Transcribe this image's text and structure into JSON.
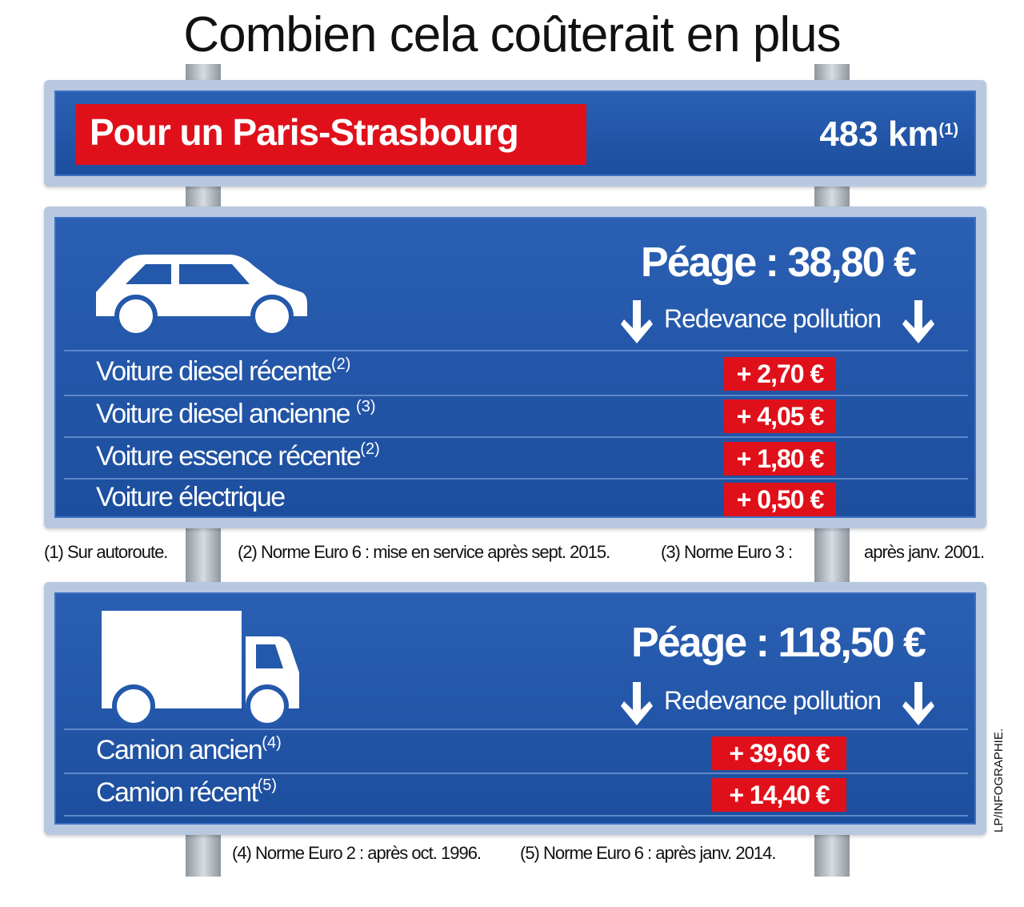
{
  "title": "Combien cela coûterait en plus",
  "route": {
    "label": "Pour un Paris-Strasbourg",
    "distance": "483 km",
    "distance_note": "(1)"
  },
  "panels": [
    {
      "toll": "Péage : 38,80 €",
      "subheader": "Redevance pollution",
      "rows": [
        {
          "label": "Voiture diesel récente",
          "note": "(2)",
          "value": "+ 2,70 €"
        },
        {
          "label": "Voiture diesel ancienne",
          "note": "(3)",
          "value": "+ 4,05 €"
        },
        {
          "label": "Voiture essence récente",
          "note": "(2)",
          "value": "+ 1,80 €"
        },
        {
          "label": "Voiture électrique",
          "value": "+ 0,50 €"
        }
      ]
    },
    {
      "toll": "Péage : 118,50 €",
      "subheader": "Redevance pollution",
      "rows": [
        {
          "label": "Camion ancien",
          "note": "(4)",
          "value": "+ 39,60 €"
        },
        {
          "label": "Camion récent",
          "note": "(5)",
          "value": "+ 14,40 €"
        }
      ]
    }
  ],
  "footnotes_top": [
    "(1) Sur autoroute.",
    "(2) Norme Euro 6 : mise en service après sept. 2015.",
    "(3) Norme Euro 3 :",
    "après janv. 2001."
  ],
  "footnotes_bottom": [
    "(4) Norme Euro 2 : après oct. 1996.",
    "(5) Norme Euro 6 : après janv. 2014."
  ],
  "credit": "LP/INFOGRAPHIE."
}
